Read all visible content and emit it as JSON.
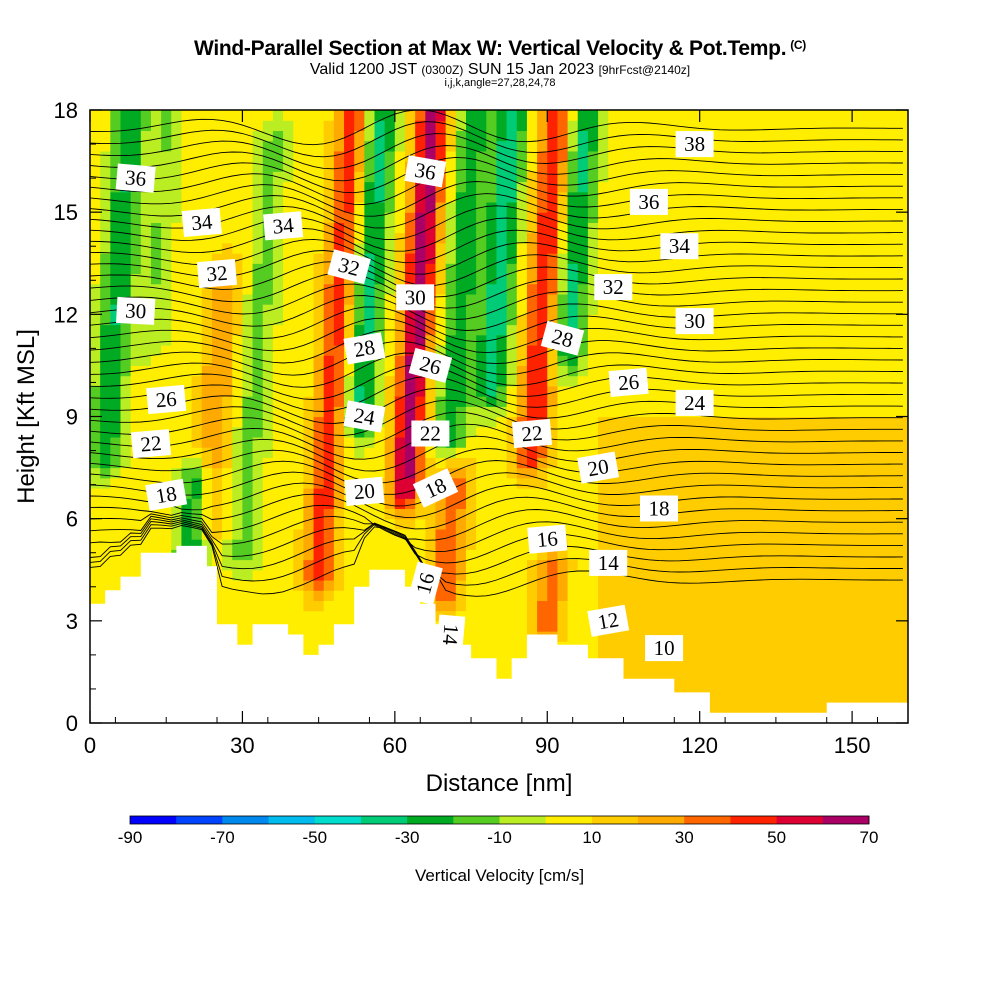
{
  "title": {
    "main": "Wind-Parallel Section at Max W: Vertical Velocity & Pot.Temp.",
    "copyright": "(C)",
    "valid_prefix": "Valid 1200 JST",
    "zulu": "(0300Z)",
    "valid_date": "SUN 15 Jan 2023",
    "forecast": "[9hrFcst@2140z]",
    "indices": "i,j,k,angle=27,28,24,78"
  },
  "colors": {
    "terrain": "#ffffff",
    "contour": "#000000",
    "levels": [
      "#0000ff",
      "#0044ff",
      "#0088ee",
      "#00bbee",
      "#00ddcc",
      "#00cc77",
      "#00aa22",
      "#55cc22",
      "#bbee22",
      "#ffee00",
      "#ffcc00",
      "#ffaa00",
      "#ff6600",
      "#ff2200",
      "#dd0033",
      "#aa0066",
      "#770088"
    ]
  },
  "chart_data": {
    "type": "heatmap",
    "xlabel": "Distance [nm]",
    "ylabel": "Height [Kft MSL]",
    "xlim": [
      0,
      161
    ],
    "ylim": [
      0,
      18
    ],
    "x_ticks": [
      "0",
      "30",
      "60",
      "90",
      "120",
      "150"
    ],
    "y_ticks": [
      "0",
      "3",
      "6",
      "9",
      "12",
      "15",
      "18"
    ],
    "x_tick_values": [
      0,
      30,
      60,
      90,
      120,
      150
    ],
    "y_tick_values": [
      0,
      3,
      6,
      9,
      12,
      15,
      18
    ],
    "colorbar": {
      "label": "Vertical Velocity [cm/s]",
      "min": -90,
      "max": 70,
      "step": 10,
      "tick_labels": [
        "-90",
        "-70",
        "-50",
        "-30",
        "-10",
        "10",
        "30",
        "50",
        "70"
      ]
    },
    "terrain_profile": {
      "x": [
        0,
        3,
        3,
        6,
        6,
        10,
        10,
        17,
        17,
        23,
        23,
        25,
        25,
        29,
        29,
        32,
        32,
        39,
        39,
        42,
        42,
        45,
        45,
        48,
        48,
        52,
        52,
        55,
        55,
        62,
        62,
        65,
        65,
        68,
        68,
        72,
        72,
        75,
        75,
        80,
        80,
        83,
        83,
        86,
        86,
        88,
        88,
        92,
        92,
        98,
        98,
        105,
        105,
        115,
        115,
        122,
        122,
        125,
        125,
        145,
        145,
        161
      ],
      "h_kft": [
        3.5,
        3.5,
        3.9,
        3.9,
        4.3,
        4.3,
        5.0,
        5.0,
        5.2,
        5.2,
        4.6,
        4.6,
        2.9,
        2.9,
        2.3,
        2.3,
        2.9,
        2.9,
        2.6,
        2.6,
        2.0,
        2.0,
        2.3,
        2.3,
        2.9,
        2.9,
        4.0,
        4.0,
        4.5,
        4.5,
        4.0,
        4.0,
        3.5,
        3.5,
        2.9,
        2.9,
        2.3,
        2.3,
        1.9,
        1.9,
        1.3,
        1.3,
        1.9,
        1.9,
        2.6,
        2.6,
        2.6,
        2.6,
        2.3,
        2.3,
        1.9,
        1.9,
        1.3,
        1.3,
        0.9,
        0.9,
        0.3,
        0.3,
        0.3,
        0.3,
        0.6,
        0.6
      ]
    },
    "vertical_velocity_features": [
      {
        "x": 3,
        "h_min": 8.0,
        "h_max": 18,
        "w": -35
      },
      {
        "x": 12,
        "h_min": 11.5,
        "h_max": 18,
        "w": -15
      },
      {
        "x": 20,
        "h_min": 5.0,
        "h_max": 7.0,
        "w": -40
      },
      {
        "x": 23,
        "h_min": 6.0,
        "h_max": 13,
        "w": 25
      },
      {
        "x": 30,
        "h_min": 5.0,
        "h_max": 17,
        "w": -18
      },
      {
        "x": 45,
        "h_min": 4.5,
        "h_max": 18,
        "w": 40
      },
      {
        "x": 53,
        "h_min": 9.0,
        "h_max": 18,
        "w": -38
      },
      {
        "x": 62,
        "h_min": 7.0,
        "h_max": 18,
        "w": 60
      },
      {
        "x": 70,
        "h_min": 4.0,
        "h_max": 7.0,
        "w": 35
      },
      {
        "x": 71,
        "h_min": 8.5,
        "h_max": 18,
        "w": -32
      },
      {
        "x": 79,
        "h_min": 10.0,
        "h_max": 18,
        "w": -42
      },
      {
        "x": 87,
        "h_min": 8.0,
        "h_max": 18,
        "w": 45
      },
      {
        "x": 94,
        "h_min": 11.0,
        "h_max": 18,
        "w": -38
      },
      {
        "x": 90,
        "h_min": 3.0,
        "h_max": 4.5,
        "w": 30
      }
    ],
    "potential_temperature_labels": [
      {
        "text": "36",
        "x": 9,
        "h": 16.0,
        "angle": 5
      },
      {
        "text": "34",
        "x": 22,
        "h": 14.7,
        "angle": -5
      },
      {
        "text": "34",
        "x": 38,
        "h": 14.6,
        "angle": -5
      },
      {
        "text": "32",
        "x": 25,
        "h": 13.2,
        "angle": -5
      },
      {
        "text": "30",
        "x": 9,
        "h": 12.1,
        "angle": 3
      },
      {
        "text": "36",
        "x": 66,
        "h": 16.2,
        "angle": 10
      },
      {
        "text": "32",
        "x": 51,
        "h": 13.4,
        "angle": 15
      },
      {
        "text": "30",
        "x": 64,
        "h": 12.5,
        "angle": 0
      },
      {
        "text": "28",
        "x": 54,
        "h": 11.0,
        "angle": -10
      },
      {
        "text": "26",
        "x": 67,
        "h": 10.5,
        "angle": 15
      },
      {
        "text": "26",
        "x": 15,
        "h": 9.5,
        "angle": -5
      },
      {
        "text": "24",
        "x": 54,
        "h": 9.0,
        "angle": 10
      },
      {
        "text": "22",
        "x": 12,
        "h": 8.2,
        "angle": -5
      },
      {
        "text": "22",
        "x": 67,
        "h": 8.5,
        "angle": 0
      },
      {
        "text": "22",
        "x": 87,
        "h": 8.5,
        "angle": -5
      },
      {
        "text": "28",
        "x": 93,
        "h": 11.3,
        "angle": 15
      },
      {
        "text": "32",
        "x": 103,
        "h": 12.8,
        "angle": 0
      },
      {
        "text": "26",
        "x": 106,
        "h": 10.0,
        "angle": -5
      },
      {
        "text": "20",
        "x": 54,
        "h": 6.8,
        "angle": -5
      },
      {
        "text": "18",
        "x": 15,
        "h": 6.7,
        "angle": -10
      },
      {
        "text": "18",
        "x": 68,
        "h": 6.9,
        "angle": -25
      },
      {
        "text": "20",
        "x": 100,
        "h": 7.5,
        "angle": -10
      },
      {
        "text": "16",
        "x": 90,
        "h": 5.4,
        "angle": -5
      },
      {
        "text": "16",
        "x": 66,
        "h": 4.1,
        "angle": -75
      },
      {
        "text": "14",
        "x": 102,
        "h": 4.7,
        "angle": 0
      },
      {
        "text": "14",
        "x": 71,
        "h": 2.6,
        "angle": 95
      },
      {
        "text": "12",
        "x": 102,
        "h": 3.0,
        "angle": -10
      },
      {
        "text": "10",
        "x": 113,
        "h": 2.2,
        "angle": 0
      },
      {
        "text": "18",
        "x": 112,
        "h": 6.3,
        "angle": 0
      },
      {
        "text": "24",
        "x": 119,
        "h": 9.4,
        "angle": 0
      },
      {
        "text": "30",
        "x": 119,
        "h": 11.8,
        "angle": 0
      },
      {
        "text": "34",
        "x": 116,
        "h": 14.0,
        "angle": 0
      },
      {
        "text": "36",
        "x": 110,
        "h": 15.3,
        "angle": 0
      },
      {
        "text": "38",
        "x": 119,
        "h": 17.0,
        "angle": 0
      }
    ]
  }
}
